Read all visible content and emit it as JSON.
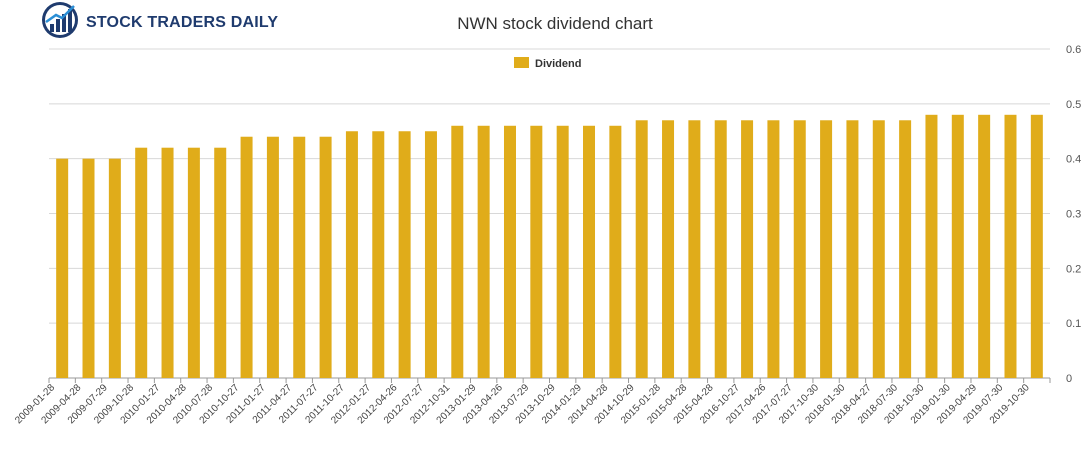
{
  "logo": {
    "text": "STOCK TRADERS DAILY",
    "icon": "chart-logo-icon"
  },
  "chart_data": {
    "type": "bar",
    "title": "NWN stock dividend chart",
    "xlabel": "",
    "ylabel": "",
    "ylim": [
      0,
      0.6
    ],
    "yticks": [
      "0",
      "0.1",
      "0.2",
      "0.3",
      "0.4",
      "0.5",
      "0.6"
    ],
    "grid": true,
    "legend_position": "top-center",
    "categories": [
      "2009-01-28",
      "2009-04-28",
      "2009-07-29",
      "2009-10-28",
      "2010-01-27",
      "2010-04-28",
      "2010-07-28",
      "2010-10-27",
      "2011-01-27",
      "2011-04-27",
      "2011-07-27",
      "2011-10-27",
      "2012-01-27",
      "2012-04-26",
      "2012-07-27",
      "2012-10-31",
      "2013-01-29",
      "2013-04-26",
      "2013-07-29",
      "2013-10-29",
      "2014-01-29",
      "2014-04-28",
      "2014-10-29",
      "2015-01-28",
      "2015-04-28",
      "2015-04-28",
      "2016-10-27",
      "2017-04-26",
      "2017-07-27",
      "2017-10-30",
      "2018-01-30",
      "2018-04-27",
      "2018-07-30",
      "2018-10-30",
      "2019-01-30",
      "2019-04-29",
      "2019-07-30",
      "2019-10-30"
    ],
    "series": [
      {
        "name": "Dividend",
        "color": "#e0ac1a",
        "values": [
          0.4,
          0.4,
          0.4,
          0.42,
          0.42,
          0.42,
          0.42,
          0.44,
          0.44,
          0.44,
          0.44,
          0.45,
          0.45,
          0.45,
          0.45,
          0.46,
          0.46,
          0.46,
          0.46,
          0.46,
          0.46,
          0.46,
          0.47,
          0.47,
          0.47,
          0.47,
          0.47,
          0.47,
          0.47,
          0.47,
          0.47,
          0.47,
          0.47,
          0.48,
          0.48,
          0.48,
          0.48,
          0.48
        ]
      }
    ]
  }
}
